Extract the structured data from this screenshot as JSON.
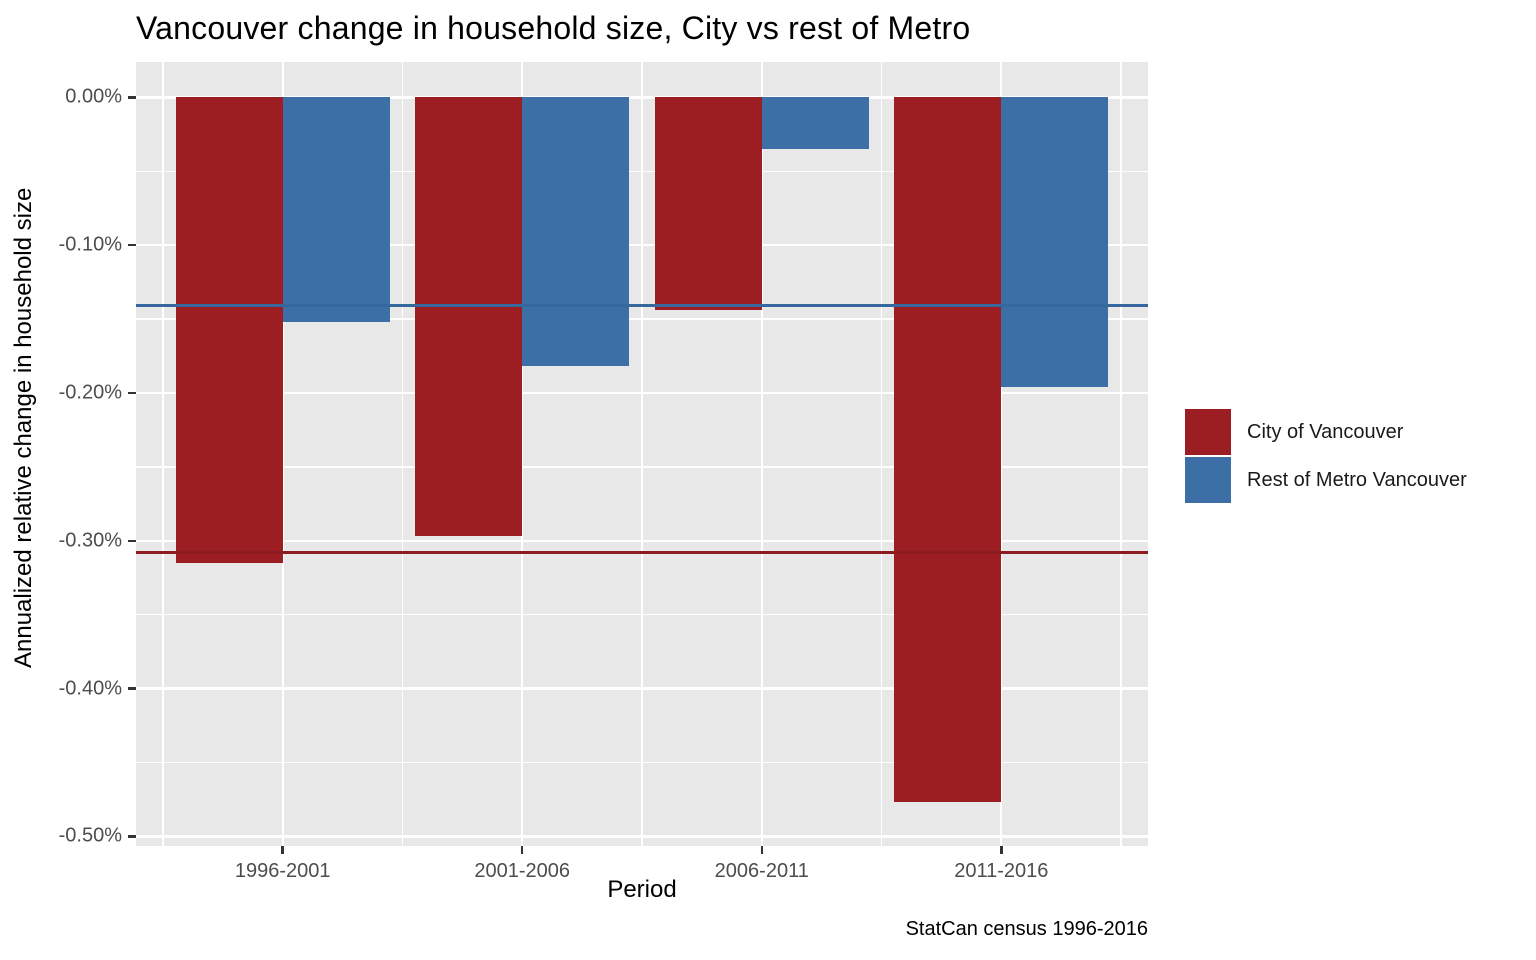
{
  "chart_data": {
    "type": "bar",
    "title": "Vancouver change in household size, City vs rest of Metro",
    "xlabel": "Period",
    "ylabel": "Annualized relative change in household size",
    "caption": "StatCan census 1996-2016",
    "categories": [
      "1996-2001",
      "2001-2006",
      "2006-2011",
      "2011-2016"
    ],
    "series": [
      {
        "name": "City of Vancouver",
        "color": "#9C1E23",
        "values": [
          -0.315,
          -0.297,
          -0.144,
          -0.477
        ]
      },
      {
        "name": "Rest of Metro Vancouver",
        "color": "#3B6FA6",
        "values": [
          -0.152,
          -0.182,
          -0.035,
          -0.196
        ]
      }
    ],
    "reference_lines": [
      {
        "series": "City of Vancouver",
        "value": -0.308,
        "color": "#8E1B20"
      },
      {
        "series": "Rest of Metro Vancouver",
        "value": -0.141,
        "color": "#36689E"
      }
    ],
    "yticks": [
      {
        "value": 0.0,
        "label": "0.00%"
      },
      {
        "value": -0.1,
        "label": "-0.10%"
      },
      {
        "value": -0.2,
        "label": "-0.20%"
      },
      {
        "value": -0.3,
        "label": "-0.30%"
      },
      {
        "value": -0.4,
        "label": "-0.40%"
      },
      {
        "value": -0.5,
        "label": "-0.50%"
      }
    ],
    "y_minor_ticks": [
      -0.05,
      -0.15,
      -0.25,
      -0.35,
      -0.45
    ],
    "ylim": [
      -0.5065,
      0.0239
    ],
    "grid": true,
    "legend_position": "right",
    "panel_bg": "#E8E8E8",
    "grid_color": "#FFFFFF",
    "axis_tick_color": "#333333"
  },
  "legend": {
    "items": [
      {
        "label": "City of Vancouver"
      },
      {
        "label": "Rest of Metro Vancouver"
      }
    ]
  }
}
